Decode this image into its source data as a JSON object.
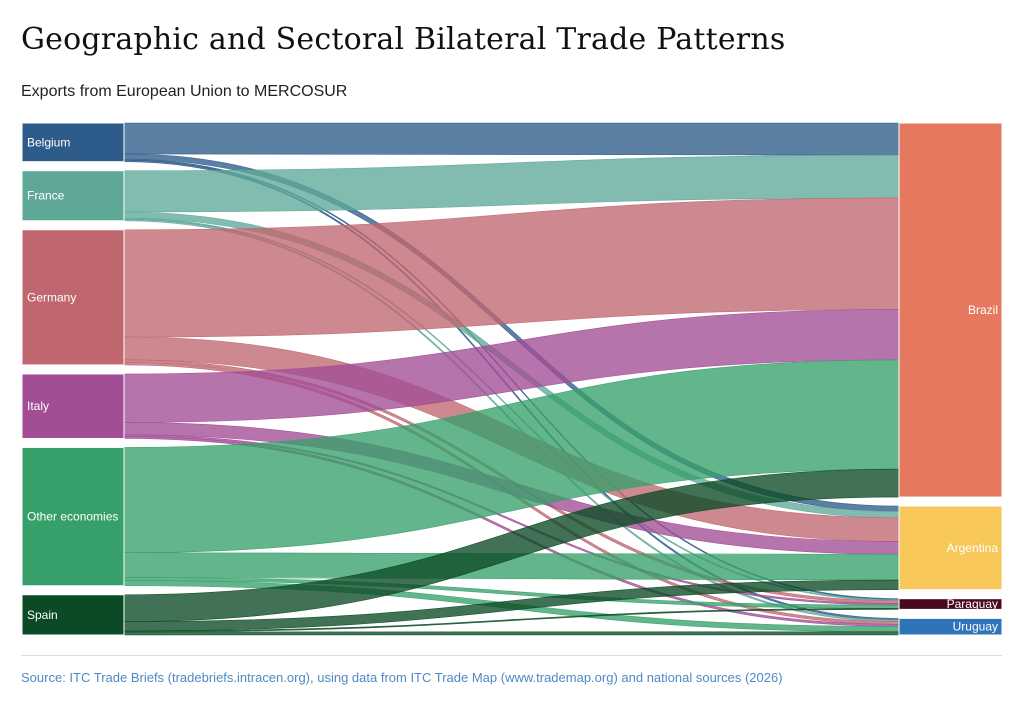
{
  "title": "Geographic and Sectoral Bilateral Trade Patterns",
  "subtitle": "Exports from European Union to MERCOSUR",
  "source": "Source: ITC Trade Briefs (tradebriefs.intracen.org), using data from ITC Trade Map (www.trademap.org) and national sources (2026)",
  "chart_data": {
    "type": "sankey",
    "sources": [
      {
        "name": "Belgium",
        "color": "#2e5c8a"
      },
      {
        "name": "France",
        "color": "#5fa898"
      },
      {
        "name": "Germany",
        "color": "#c0666f"
      },
      {
        "name": "Italy",
        "color": "#a24d95"
      },
      {
        "name": "Other economies",
        "color": "#37a06a"
      },
      {
        "name": "Spain",
        "color": "#0b4a25"
      }
    ],
    "targets": [
      {
        "name": "Brazil",
        "color": "#e5785e"
      },
      {
        "name": "Argentina",
        "color": "#f7c75a"
      },
      {
        "name": "Paraguay",
        "color": "#4a0a1e"
      },
      {
        "name": "Uruguay",
        "color": "#2f73b8"
      }
    ],
    "links": [
      {
        "source": "Belgium",
        "target": "Brazil",
        "value": 3.0
      },
      {
        "source": "Belgium",
        "target": "Argentina",
        "value": 0.5
      },
      {
        "source": "Belgium",
        "target": "Paraguay",
        "value": 0.1
      },
      {
        "source": "Belgium",
        "target": "Uruguay",
        "value": 0.15
      },
      {
        "source": "France",
        "target": "Brazil",
        "value": 4.0
      },
      {
        "source": "France",
        "target": "Argentina",
        "value": 0.6
      },
      {
        "source": "France",
        "target": "Paraguay",
        "value": 0.1
      },
      {
        "source": "France",
        "target": "Uruguay",
        "value": 0.15
      },
      {
        "source": "Germany",
        "target": "Brazil",
        "value": 10.4
      },
      {
        "source": "Germany",
        "target": "Argentina",
        "value": 2.2
      },
      {
        "source": "Germany",
        "target": "Paraguay",
        "value": 0.25
      },
      {
        "source": "Germany",
        "target": "Uruguay",
        "value": 0.25
      },
      {
        "source": "Italy",
        "target": "Brazil",
        "value": 4.7
      },
      {
        "source": "Italy",
        "target": "Argentina",
        "value": 1.2
      },
      {
        "source": "Italy",
        "target": "Paraguay",
        "value": 0.15
      },
      {
        "source": "Italy",
        "target": "Uruguay",
        "value": 0.2
      },
      {
        "source": "Other economies",
        "target": "Brazil",
        "value": 10.2
      },
      {
        "source": "Other economies",
        "target": "Argentina",
        "value": 2.4
      },
      {
        "source": "Other economies",
        "target": "Paraguay",
        "value": 0.3
      },
      {
        "source": "Other economies",
        "target": "Uruguay",
        "value": 0.5
      },
      {
        "source": "Spain",
        "target": "Brazil",
        "value": 2.6
      },
      {
        "source": "Spain",
        "target": "Argentina",
        "value": 0.9
      },
      {
        "source": "Spain",
        "target": "Paraguay",
        "value": 0.1
      },
      {
        "source": "Spain",
        "target": "Uruguay",
        "value": 0.3
      }
    ]
  }
}
